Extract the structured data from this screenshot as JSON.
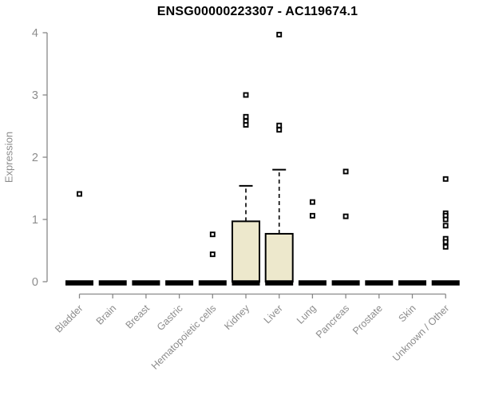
{
  "title": "ENSG00000223307 - AC119674.1",
  "ylabel": "Expression",
  "colors": {
    "background": "#ffffff",
    "title_text": "#000000",
    "axis_line": "#898989",
    "tick_label": "#8c8c8c",
    "box_fill": "#ede8cc",
    "box_border": "#000000",
    "median": "#000000",
    "whisker": "#000000",
    "outlier": "#000000"
  },
  "chart_data": {
    "type": "boxplot",
    "title": "ENSG00000223307 - AC119674.1",
    "xlabel": "",
    "ylabel": "Expression",
    "ylim": [
      0,
      4
    ],
    "yticks": [
      0,
      1,
      2,
      3,
      4
    ],
    "grid": false,
    "categories": [
      "Bladder",
      "Brain",
      "Breast",
      "Gastric",
      "Hematopoietic cells",
      "Kidney",
      "Liver",
      "Lung",
      "Pancreas",
      "Prostate",
      "Skin",
      "Unknown / Other"
    ],
    "boxes": [
      {
        "category": "Bladder",
        "whisker_low": 0,
        "q1": 0,
        "median": 0,
        "q3": 0,
        "whisker_high": 0,
        "outliers": [
          1.41
        ]
      },
      {
        "category": "Brain",
        "whisker_low": 0,
        "q1": 0,
        "median": 0,
        "q3": 0,
        "whisker_high": 0,
        "outliers": []
      },
      {
        "category": "Breast",
        "whisker_low": 0,
        "q1": 0,
        "median": 0,
        "q3": 0,
        "whisker_high": 0,
        "outliers": []
      },
      {
        "category": "Gastric",
        "whisker_low": 0,
        "q1": 0,
        "median": 0,
        "q3": 0,
        "whisker_high": 0,
        "outliers": []
      },
      {
        "category": "Hematopoietic cells",
        "whisker_low": 0,
        "q1": 0,
        "median": 0,
        "q3": 0,
        "whisker_high": 0,
        "outliers": [
          0.76,
          0.44
        ]
      },
      {
        "category": "Kidney",
        "whisker_low": 0,
        "q1": 0,
        "median": 0,
        "q3": 0.97,
        "whisker_high": 1.54,
        "outliers": [
          3.0,
          2.65,
          2.58,
          2.52
        ]
      },
      {
        "category": "Liver",
        "whisker_low": 0,
        "q1": 0,
        "median": 0,
        "q3": 0.77,
        "whisker_high": 1.8,
        "outliers": [
          3.97,
          2.51,
          2.44
        ]
      },
      {
        "category": "Lung",
        "whisker_low": 0,
        "q1": 0,
        "median": 0,
        "q3": 0,
        "whisker_high": 0,
        "outliers": [
          1.28,
          1.06
        ]
      },
      {
        "category": "Pancreas",
        "whisker_low": 0,
        "q1": 0,
        "median": 0,
        "q3": 0,
        "whisker_high": 0,
        "outliers": [
          1.77,
          1.05
        ]
      },
      {
        "category": "Prostate",
        "whisker_low": 0,
        "q1": 0,
        "median": 0,
        "q3": 0,
        "whisker_high": 0,
        "outliers": []
      },
      {
        "category": "Skin",
        "whisker_low": 0,
        "q1": 0,
        "median": 0,
        "q3": 0,
        "whisker_high": 0,
        "outliers": []
      },
      {
        "category": "Unknown / Other",
        "whisker_low": 0,
        "q1": 0,
        "median": 0,
        "q3": 0,
        "whisker_high": 0,
        "outliers": [
          1.65,
          1.1,
          1.06,
          1.0,
          0.9,
          0.69,
          0.64,
          0.56
        ]
      }
    ]
  }
}
